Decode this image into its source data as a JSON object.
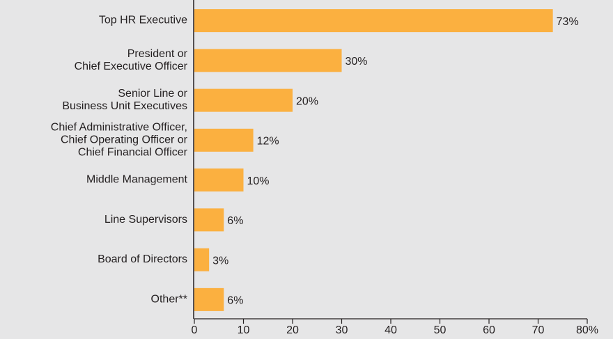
{
  "chart_data": {
    "type": "bar",
    "orientation": "horizontal",
    "categories": [
      "Top HR Executive",
      "President or\nChief Executive Officer",
      "Senior Line or\nBusiness Unit Executives",
      "Chief Administrative Officer,\nChief Operating Officer or\nChief Financial Officer",
      "Middle Management",
      "Line Supervisors",
      "Board of Directors",
      "Other**"
    ],
    "values": [
      73,
      30,
      20,
      12,
      10,
      6,
      3,
      6
    ],
    "value_labels": [
      "73%",
      "30%",
      "20%",
      "12%",
      "10%",
      "6%",
      "3%",
      "6%"
    ],
    "color": "#fbb040",
    "xlim": [
      0,
      80
    ],
    "xticks": [
      0,
      10,
      20,
      30,
      40,
      50,
      60,
      70,
      {
        "value": 80,
        "label": "80%"
      }
    ]
  }
}
